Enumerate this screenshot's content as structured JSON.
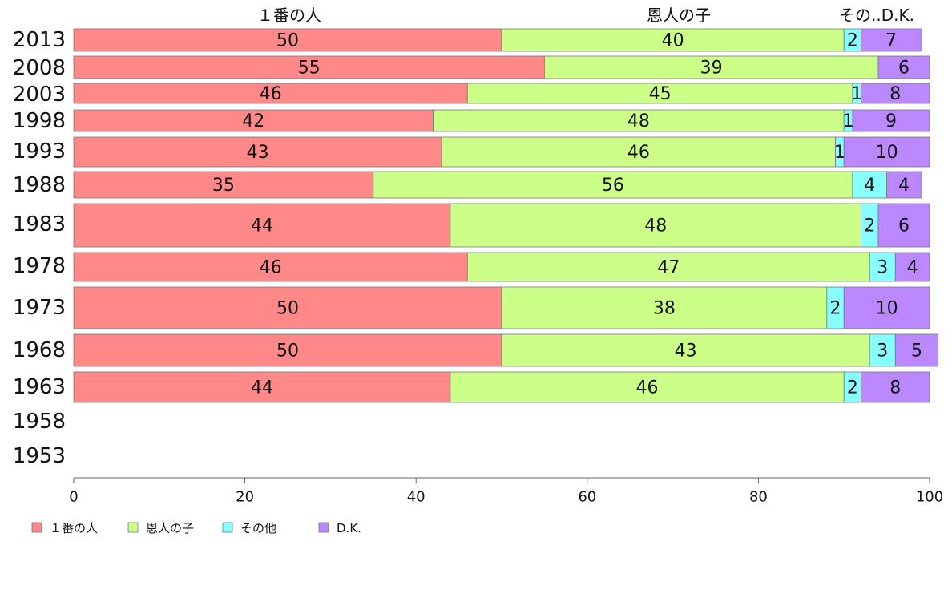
{
  "chart_data": {
    "type": "bar",
    "orientation": "horizontal",
    "stacked": true,
    "categories": [
      "2013",
      "2008",
      "2003",
      "1998",
      "1993",
      "1988",
      "1983",
      "1978",
      "1973",
      "1968",
      "1963",
      "1958",
      "1953"
    ],
    "series": [
      {
        "name": "１番の人",
        "color": "#ff8888",
        "values": [
          50,
          55,
          46,
          42,
          43,
          35,
          44,
          46,
          50,
          50,
          44,
          null,
          null
        ]
      },
      {
        "name": "恩人の子",
        "color": "#ccff88",
        "values": [
          40,
          39,
          45,
          48,
          46,
          56,
          48,
          47,
          38,
          43,
          46,
          null,
          null
        ]
      },
      {
        "name": "その他",
        "color": "#88ffff",
        "values": [
          2,
          0,
          1,
          1,
          1,
          4,
          2,
          3,
          2,
          3,
          2,
          null,
          null
        ]
      },
      {
        "name": "D.K.",
        "color": "#bb88ff",
        "values": [
          7,
          6,
          8,
          9,
          10,
          4,
          6,
          4,
          10,
          5,
          8,
          null,
          null
        ]
      }
    ],
    "segment_labels": [
      [
        "50",
        "40",
        "2",
        "7"
      ],
      [
        "55",
        "39",
        "",
        "6"
      ],
      [
        "46",
        "45",
        "1",
        "8"
      ],
      [
        "42",
        "48",
        "1",
        "9"
      ],
      [
        "43",
        "46",
        "1",
        "10"
      ],
      [
        "35",
        "56",
        "4",
        "4"
      ],
      [
        "44",
        "48",
        "2",
        "6"
      ],
      [
        "46",
        "47",
        "3",
        "4"
      ],
      [
        "50",
        "38",
        "2",
        "10"
      ],
      [
        "50",
        "43",
        "3",
        "5"
      ],
      [
        "44",
        "46",
        "2",
        "8"
      ],
      [
        "",
        "",
        "",
        ""
      ],
      [
        "",
        "",
        "",
        ""
      ]
    ],
    "top_labels": [
      "１番の人",
      "恩人の子",
      "その..D.K."
    ],
    "xlim": [
      0,
      100
    ],
    "xticks": [
      "0",
      "20",
      "40",
      "60",
      "80",
      "100"
    ],
    "legend": "bottom-left"
  }
}
